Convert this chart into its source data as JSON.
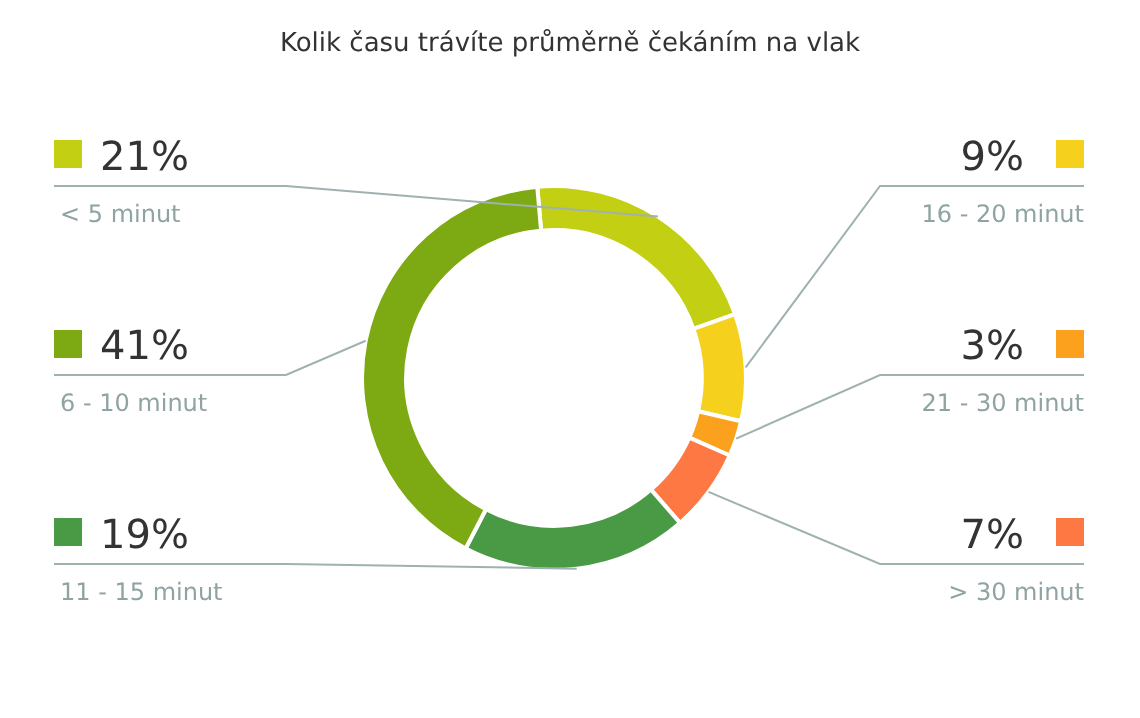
{
  "chart_data": {
    "type": "donut",
    "title": "Kolik času trávíte průměrně čekáním na vlak",
    "categories": [
      "< 5 minut",
      "16 - 20 minut",
      "21 - 30 minut",
      "> 30 minut",
      "11 - 15 minut",
      "6 - 10 minut"
    ],
    "values": [
      21,
      9,
      3,
      7,
      19,
      41
    ],
    "value_labels": [
      "21%",
      "9%",
      "3%",
      "7%",
      "19%",
      "41%"
    ],
    "colors": [
      "#c3cf12",
      "#f5d01c",
      "#fba11e",
      "#fd7842",
      "#4a9a45",
      "#7da913"
    ]
  }
}
